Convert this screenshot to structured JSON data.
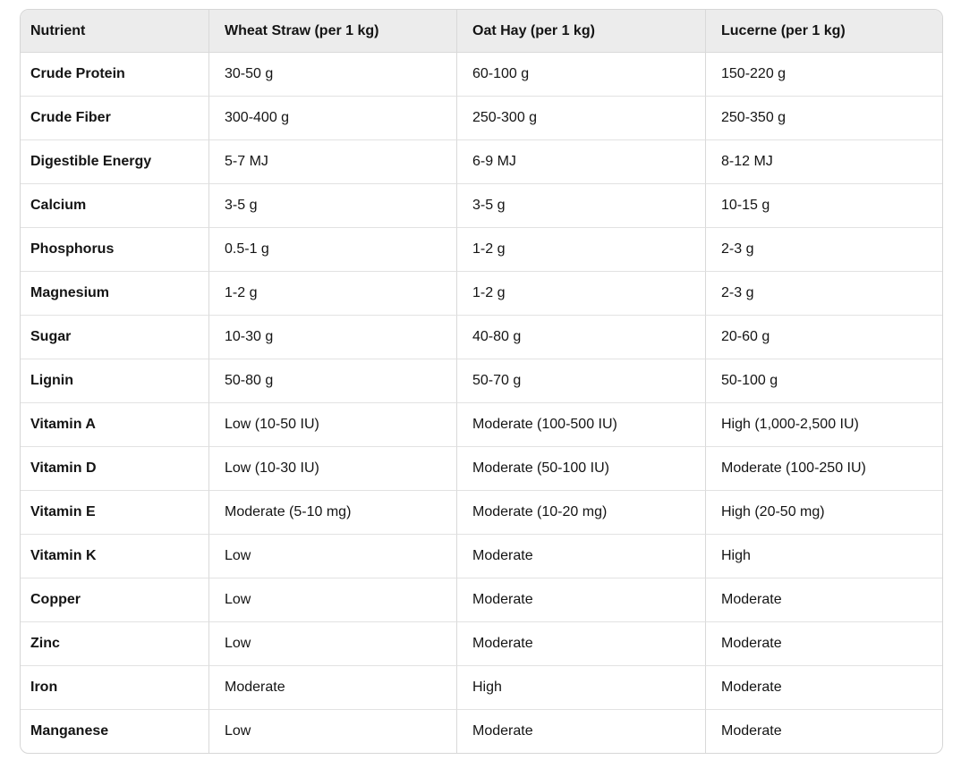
{
  "chart_data": {
    "type": "table",
    "columns": [
      "Nutrient",
      "Wheat Straw (per 1 kg)",
      "Oat Hay (per 1 kg)",
      "Lucerne (per 1 kg)"
    ],
    "rows": [
      [
        "Crude Protein",
        "30-50 g",
        "60-100 g",
        "150-220 g"
      ],
      [
        "Crude Fiber",
        "300-400 g",
        "250-300 g",
        "250-350 g"
      ],
      [
        "Digestible Energy",
        "5-7 MJ",
        "6-9 MJ",
        "8-12 MJ"
      ],
      [
        "Calcium",
        "3-5 g",
        "3-5 g",
        "10-15 g"
      ],
      [
        "Phosphorus",
        "0.5-1 g",
        "1-2 g",
        "2-3 g"
      ],
      [
        "Magnesium",
        "1-2 g",
        "1-2 g",
        "2-3 g"
      ],
      [
        "Sugar",
        "10-30 g",
        "40-80 g",
        "20-60 g"
      ],
      [
        "Lignin",
        "50-80 g",
        "50-70 g",
        "50-100 g"
      ],
      [
        "Vitamin A",
        "Low (10-50 IU)",
        "Moderate (100-500 IU)",
        "High (1,000-2,500 IU)"
      ],
      [
        "Vitamin D",
        "Low (10-30 IU)",
        "Moderate (50-100 IU)",
        "Moderate (100-250 IU)"
      ],
      [
        "Vitamin E",
        "Moderate (5-10 mg)",
        "Moderate (10-20 mg)",
        "High (20-50 mg)"
      ],
      [
        "Vitamin K",
        "Low",
        "Moderate",
        "High"
      ],
      [
        "Copper",
        "Low",
        "Moderate",
        "Moderate"
      ],
      [
        "Zinc",
        "Low",
        "Moderate",
        "Moderate"
      ],
      [
        "Iron",
        "Moderate",
        "High",
        "Moderate"
      ],
      [
        "Manganese",
        "Low",
        "Moderate",
        "Moderate"
      ]
    ],
    "layout_hints": {
      "grid": "on",
      "header_row": true,
      "bold_first_column": true
    }
  },
  "colors": {
    "header_bg": "#ececec",
    "border_outer": "#d6d6d6",
    "border_col": "#d9d9d9",
    "border_row": "#e2e2e2",
    "text": "#141414",
    "row_bg": "#ffffff"
  }
}
